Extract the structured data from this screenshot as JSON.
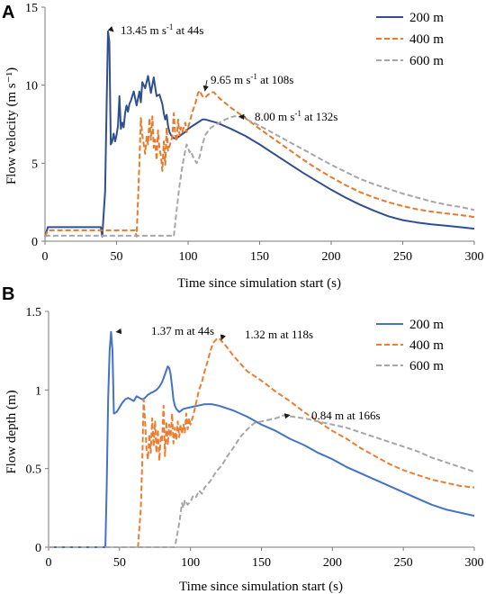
{
  "chart_data": [
    {
      "panel": "A",
      "type": "line",
      "xlabel": "Time since simulation start (s)",
      "ylabel": "Flow velocity (m s⁻¹)",
      "xlim": [
        0,
        300
      ],
      "ylim": [
        0,
        15
      ],
      "xticks": [
        0,
        50,
        100,
        150,
        200,
        250,
        300
      ],
      "yticks": [
        0,
        5,
        10,
        15
      ],
      "grid": false,
      "legend": "top-right",
      "series": [
        {
          "name": "200 m",
          "color": "#2f4f8f",
          "dash": "solid",
          "x": [
            0,
            2,
            39,
            40,
            42,
            43,
            44,
            45,
            46,
            47,
            48,
            49,
            50,
            51,
            52,
            53,
            54,
            55,
            56,
            57,
            58,
            59,
            60,
            62,
            64,
            66,
            67,
            68,
            70,
            72,
            74,
            76,
            78,
            80,
            82,
            83,
            84,
            85,
            86,
            87,
            88,
            90,
            92,
            95,
            98,
            100,
            105,
            110,
            112,
            120,
            130,
            140,
            150,
            160,
            170,
            180,
            190,
            200,
            210,
            220,
            230,
            240,
            250,
            260,
            270,
            280,
            290,
            300
          ],
          "y": [
            0.3,
            0.9,
            0.9,
            0.3,
            3.2,
            8.5,
            13.45,
            12.8,
            6.2,
            6.4,
            6.9,
            6.4,
            6.8,
            7.4,
            9.3,
            7.2,
            7.6,
            7.3,
            8.2,
            8.7,
            8.3,
            8.8,
            9.0,
            9.6,
            8.7,
            9.6,
            8.9,
            10.2,
            9.8,
            10.6,
            9.5,
            10.5,
            9.3,
            9.4,
            8.8,
            8.2,
            7.8,
            8.1,
            7.4,
            7.0,
            6.8,
            6.6,
            6.6,
            6.8,
            7.0,
            7.2,
            7.5,
            7.8,
            7.8,
            7.6,
            7.2,
            6.75,
            6.2,
            5.6,
            5.0,
            4.4,
            3.85,
            3.3,
            2.8,
            2.35,
            1.95,
            1.6,
            1.35,
            1.2,
            1.08,
            1.0,
            0.9,
            0.8
          ]
        },
        {
          "name": "400 m",
          "color": "#e8782a",
          "dash": "dash",
          "x": [
            0,
            2,
            63,
            64,
            66,
            67,
            68,
            70,
            71,
            72,
            73,
            74,
            75,
            76,
            77,
            78,
            79,
            80,
            81,
            82,
            83,
            84,
            85,
            86,
            88,
            89,
            90,
            91,
            92,
            93,
            94,
            95,
            96,
            97,
            98,
            99,
            100,
            101,
            103,
            105,
            107,
            108,
            110,
            112,
            114,
            116,
            118,
            120,
            122,
            124,
            130,
            140,
            150,
            160,
            170,
            180,
            190,
            200,
            210,
            220,
            230,
            240,
            250,
            260,
            270,
            280,
            290,
            300
          ],
          "y": [
            0.3,
            0.7,
            0.7,
            0.3,
            5.0,
            7.9,
            6.8,
            5.6,
            6.7,
            6.2,
            7.9,
            6.5,
            8.0,
            6.0,
            6.5,
            5.2,
            7.1,
            5.9,
            5.5,
            4.5,
            6.4,
            4.9,
            7.3,
            5.8,
            6.4,
            6.7,
            8.2,
            6.8,
            6.4,
            7.8,
            6.8,
            7.3,
            7.0,
            7.3,
            7.6,
            7.0,
            7.3,
            7.6,
            8.3,
            8.8,
            9.5,
            9.65,
            9.3,
            9.2,
            9.4,
            9.55,
            9.55,
            9.35,
            9.15,
            9.0,
            8.55,
            7.9,
            7.2,
            6.55,
            5.9,
            5.25,
            4.65,
            4.1,
            3.6,
            3.15,
            2.8,
            2.5,
            2.25,
            2.05,
            1.9,
            1.78,
            1.68,
            1.55
          ]
        },
        {
          "name": "600 m",
          "color": "#a6a6a6",
          "dash": "dash",
          "x": [
            0,
            2,
            89,
            90,
            92,
            94,
            96,
            98,
            99,
            100,
            101,
            102,
            103,
            104,
            106,
            108,
            110,
            112,
            115,
            118,
            122,
            126,
            130,
            132,
            134,
            140,
            150,
            160,
            170,
            180,
            190,
            200,
            210,
            220,
            230,
            240,
            250,
            260,
            270,
            280,
            290,
            300
          ],
          "y": [
            0.3,
            0.35,
            0.35,
            0.3,
            2.0,
            3.6,
            4.8,
            5.8,
            6.2,
            6.0,
            5.7,
            5.8,
            5.5,
            5.3,
            5.0,
            5.4,
            6.2,
            6.8,
            7.2,
            7.4,
            7.6,
            7.8,
            7.95,
            8.0,
            8.0,
            7.85,
            7.4,
            6.9,
            6.4,
            5.9,
            5.4,
            4.9,
            4.45,
            4.0,
            3.65,
            3.35,
            3.05,
            2.8,
            2.55,
            2.35,
            2.2,
            2.0
          ]
        }
      ],
      "annotations": [
        {
          "base": "13.45 m s",
          "sup": "-1",
          "rest": " at 44s",
          "x": 44,
          "y": 13.45
        },
        {
          "base": "9.65  m s",
          "sup": "-1",
          "rest": " at 108s",
          "x": 108,
          "y": 9.65
        },
        {
          "base": "8.00 m s",
          "sup": "-1",
          "rest": " at 132s",
          "x": 132,
          "y": 8.0
        }
      ]
    },
    {
      "panel": "B",
      "type": "line",
      "xlabel": "Time since simulation start (s)",
      "ylabel": "Flow depth (m)",
      "xlim": [
        0,
        300
      ],
      "ylim": [
        0,
        1.5
      ],
      "xticks": [
        0,
        50,
        100,
        150,
        200,
        250,
        300
      ],
      "yticks": [
        0,
        0.5,
        1,
        1.5
      ],
      "grid": false,
      "legend": "top-right",
      "series": [
        {
          "name": "200 m",
          "color": "#4472c4",
          "dash": "solid",
          "x": [
            0,
            40,
            41,
            42,
            43,
            44,
            45,
            46,
            48,
            50,
            52,
            54,
            56,
            58,
            60,
            62,
            64,
            66,
            68,
            70,
            72,
            74,
            76,
            78,
            80,
            82,
            84,
            85,
            86,
            87,
            88,
            89,
            90,
            92,
            95,
            100,
            105,
            110,
            115,
            120,
            130,
            140,
            150,
            160,
            170,
            180,
            190,
            200,
            210,
            220,
            230,
            240,
            250,
            260,
            270,
            280,
            290,
            300
          ],
          "y": [
            0,
            0,
            0.4,
            0.95,
            1.25,
            1.37,
            1.25,
            0.85,
            0.86,
            0.89,
            0.92,
            0.94,
            0.95,
            0.94,
            0.93,
            0.96,
            0.95,
            0.94,
            0.95,
            0.97,
            0.98,
            0.99,
            1.0,
            1.02,
            1.05,
            1.1,
            1.15,
            1.14,
            1.1,
            1.02,
            0.94,
            0.9,
            0.88,
            0.86,
            0.88,
            0.89,
            0.9,
            0.91,
            0.91,
            0.9,
            0.87,
            0.83,
            0.78,
            0.74,
            0.69,
            0.65,
            0.6,
            0.56,
            0.51,
            0.47,
            0.43,
            0.39,
            0.35,
            0.31,
            0.27,
            0.24,
            0.22,
            0.2
          ]
        },
        {
          "name": "400 m",
          "color": "#ed7d31",
          "dash": "dash",
          "x": [
            0,
            63,
            65,
            66,
            67,
            68,
            69,
            70,
            71,
            72,
            73,
            74,
            75,
            76,
            77,
            78,
            79,
            80,
            81,
            82,
            83,
            84,
            85,
            86,
            87,
            88,
            89,
            90,
            91,
            92,
            93,
            94,
            95,
            96,
            97,
            98,
            99,
            100,
            102,
            104,
            106,
            108,
            110,
            112,
            114,
            116,
            118,
            120,
            125,
            130,
            140,
            150,
            160,
            170,
            180,
            190,
            200,
            210,
            220,
            230,
            240,
            250,
            260,
            270,
            280,
            290,
            300
          ],
          "y": [
            0,
            0,
            0.25,
            0.55,
            0.94,
            0.8,
            0.62,
            0.56,
            0.72,
            0.6,
            0.82,
            0.64,
            0.8,
            0.6,
            0.75,
            0.55,
            0.7,
            0.68,
            0.9,
            0.58,
            0.8,
            0.65,
            0.78,
            0.7,
            0.85,
            0.66,
            0.76,
            0.68,
            0.8,
            0.7,
            0.78,
            0.72,
            0.78,
            0.73,
            0.85,
            0.75,
            0.82,
            0.78,
            0.84,
            0.92,
            1.0,
            1.05,
            1.12,
            1.18,
            1.25,
            1.3,
            1.32,
            1.33,
            1.28,
            1.22,
            1.12,
            1.06,
            0.99,
            0.93,
            0.86,
            0.8,
            0.74,
            0.69,
            0.63,
            0.58,
            0.53,
            0.49,
            0.46,
            0.43,
            0.41,
            0.39,
            0.38
          ]
        },
        {
          "name": "600 m",
          "color": "#a6a6a6",
          "dash": "dash",
          "x": [
            0,
            89,
            90,
            92,
            94,
            95,
            96,
            98,
            100,
            102,
            104,
            106,
            108,
            110,
            114,
            118,
            122,
            126,
            130,
            135,
            140,
            145,
            150,
            155,
            160,
            166,
            172,
            180,
            190,
            200,
            210,
            220,
            230,
            240,
            250,
            260,
            270,
            280,
            290,
            300
          ],
          "y": [
            0,
            0,
            0.05,
            0.15,
            0.28,
            0.25,
            0.3,
            0.27,
            0.29,
            0.33,
            0.32,
            0.36,
            0.34,
            0.38,
            0.42,
            0.48,
            0.52,
            0.58,
            0.63,
            0.7,
            0.75,
            0.79,
            0.8,
            0.81,
            0.82,
            0.84,
            0.83,
            0.82,
            0.8,
            0.78,
            0.76,
            0.73,
            0.7,
            0.67,
            0.64,
            0.61,
            0.57,
            0.54,
            0.51,
            0.48
          ]
        }
      ],
      "annotations": [
        {
          "base": "1.37 m at 44s",
          "x": 44,
          "y": 1.37
        },
        {
          "base": "1.32 m at 118s",
          "x": 118,
          "y": 1.32
        },
        {
          "base": "0.84 m at 166s",
          "x": 166,
          "y": 0.84
        }
      ]
    }
  ]
}
